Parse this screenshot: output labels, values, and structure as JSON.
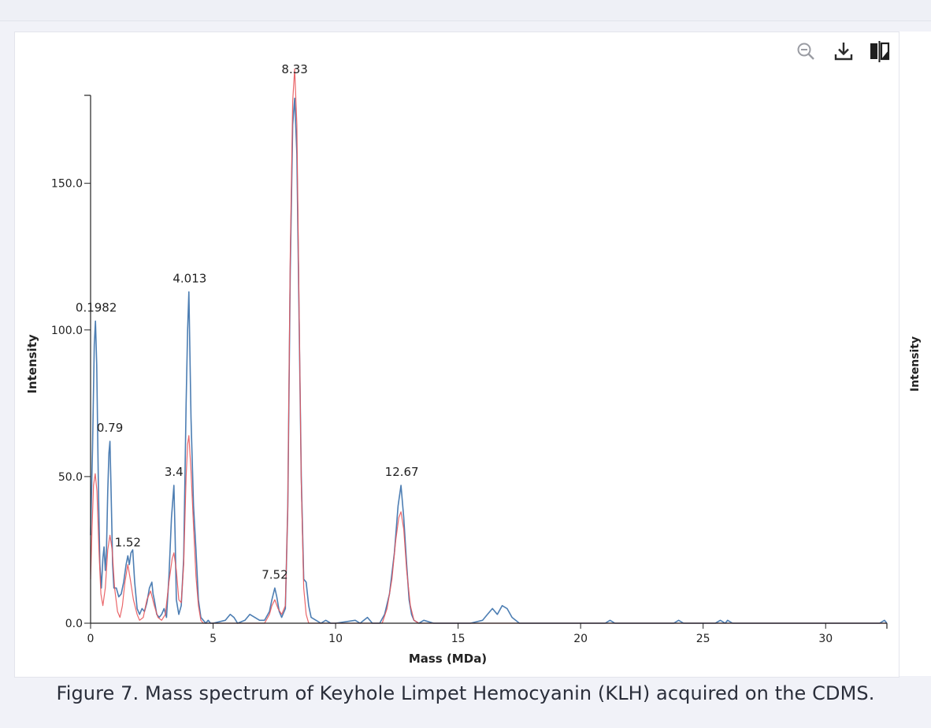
{
  "caption": "Figure 7. Mass spectrum of Keyhole Limpet Hemocyanin (KLH) acquired on the CDMS.",
  "side_axis_label": "Intensity",
  "toolbar": {
    "icons": [
      "zoom-out-icon",
      "download-icon",
      "compare-icon"
    ]
  },
  "colors": {
    "observed": "#4d7eb3",
    "fit": "#e8555a",
    "background": "#f1f2f8"
  },
  "chart_data": {
    "type": "line",
    "title": "",
    "xlabel": "Mass (MDa)",
    "ylabel": "Intensity",
    "xlim": [
      0,
      32.5
    ],
    "ylim": [
      0,
      180
    ],
    "x_ticks": [
      0,
      5,
      10,
      15,
      20,
      25,
      30
    ],
    "y_ticks": [
      0,
      50,
      100,
      150
    ],
    "y_tick_labels": [
      "0.0",
      "50.0",
      "100.0",
      "150.0"
    ],
    "grid": false,
    "legend": "none",
    "series": [
      {
        "color": "#4d7eb3",
        "points": [
          [
            0,
            30
          ],
          [
            0.08,
            60
          ],
          [
            0.15,
            95
          ],
          [
            0.2,
            103
          ],
          [
            0.25,
            88
          ],
          [
            0.32,
            45
          ],
          [
            0.38,
            20
          ],
          [
            0.44,
            12
          ],
          [
            0.5,
            22
          ],
          [
            0.55,
            26
          ],
          [
            0.6,
            18
          ],
          [
            0.65,
            25
          ],
          [
            0.7,
            45
          ],
          [
            0.75,
            58
          ],
          [
            0.79,
            62
          ],
          [
            0.83,
            48
          ],
          [
            0.9,
            20
          ],
          [
            0.95,
            12
          ],
          [
            1.05,
            12
          ],
          [
            1.15,
            9
          ],
          [
            1.25,
            10
          ],
          [
            1.35,
            14
          ],
          [
            1.45,
            20
          ],
          [
            1.52,
            23
          ],
          [
            1.58,
            20
          ],
          [
            1.65,
            24
          ],
          [
            1.72,
            25
          ],
          [
            1.8,
            14
          ],
          [
            1.9,
            5
          ],
          [
            2.0,
            3
          ],
          [
            2.1,
            5
          ],
          [
            2.2,
            4
          ],
          [
            2.3,
            7
          ],
          [
            2.4,
            12
          ],
          [
            2.5,
            14
          ],
          [
            2.55,
            10
          ],
          [
            2.6,
            8
          ],
          [
            2.7,
            3
          ],
          [
            2.8,
            2
          ],
          [
            2.9,
            3
          ],
          [
            3.0,
            5
          ],
          [
            3.1,
            2
          ],
          [
            3.2,
            16
          ],
          [
            3.3,
            36
          ],
          [
            3.4,
            47
          ],
          [
            3.45,
            30
          ],
          [
            3.5,
            8
          ],
          [
            3.6,
            3
          ],
          [
            3.7,
            6
          ],
          [
            3.8,
            22
          ],
          [
            3.9,
            75
          ],
          [
            3.96,
            100
          ],
          [
            4.013,
            113
          ],
          [
            4.1,
            70
          ],
          [
            4.2,
            40
          ],
          [
            4.3,
            25
          ],
          [
            4.4,
            8
          ],
          [
            4.5,
            2
          ],
          [
            4.6,
            1
          ],
          [
            4.7,
            0
          ],
          [
            4.8,
            1
          ],
          [
            4.9,
            0
          ],
          [
            5.0,
            0
          ],
          [
            5.5,
            1
          ],
          [
            5.7,
            3
          ],
          [
            5.85,
            2
          ],
          [
            6.0,
            0
          ],
          [
            6.3,
            1
          ],
          [
            6.5,
            3
          ],
          [
            6.7,
            2
          ],
          [
            6.9,
            1
          ],
          [
            7.1,
            1
          ],
          [
            7.3,
            4
          ],
          [
            7.4,
            8
          ],
          [
            7.52,
            12
          ],
          [
            7.6,
            9
          ],
          [
            7.7,
            4
          ],
          [
            7.8,
            2
          ],
          [
            7.95,
            5
          ],
          [
            8.05,
            40
          ],
          [
            8.15,
            120
          ],
          [
            8.25,
            170
          ],
          [
            8.33,
            179
          ],
          [
            8.42,
            160
          ],
          [
            8.5,
            110
          ],
          [
            8.6,
            50
          ],
          [
            8.7,
            15
          ],
          [
            8.8,
            14
          ],
          [
            8.9,
            6
          ],
          [
            9.0,
            2
          ],
          [
            9.2,
            1
          ],
          [
            9.4,
            0
          ],
          [
            9.6,
            1
          ],
          [
            9.8,
            0
          ],
          [
            10.0,
            0
          ],
          [
            10.8,
            1
          ],
          [
            11.0,
            0
          ],
          [
            11.3,
            2
          ],
          [
            11.5,
            0
          ],
          [
            11.8,
            0
          ],
          [
            12.0,
            3
          ],
          [
            12.2,
            10
          ],
          [
            12.4,
            24
          ],
          [
            12.55,
            40
          ],
          [
            12.67,
            47
          ],
          [
            12.78,
            36
          ],
          [
            12.9,
            20
          ],
          [
            13.0,
            8
          ],
          [
            13.1,
            3
          ],
          [
            13.2,
            1
          ],
          [
            13.4,
            0
          ],
          [
            13.6,
            1
          ],
          [
            14.0,
            0
          ],
          [
            15.5,
            0
          ],
          [
            16.0,
            1
          ],
          [
            16.2,
            3
          ],
          [
            16.4,
            5
          ],
          [
            16.6,
            3
          ],
          [
            16.8,
            6
          ],
          [
            17.0,
            5
          ],
          [
            17.2,
            2
          ],
          [
            17.5,
            0
          ],
          [
            18.0,
            0
          ],
          [
            21.0,
            0
          ],
          [
            21.2,
            1
          ],
          [
            21.4,
            0
          ],
          [
            23.8,
            0
          ],
          [
            24.0,
            1
          ],
          [
            24.2,
            0
          ],
          [
            25.5,
            0
          ],
          [
            25.7,
            1
          ],
          [
            25.9,
            0
          ],
          [
            26.0,
            1
          ],
          [
            26.2,
            0
          ],
          [
            30.0,
            0
          ],
          [
            32.2,
            0
          ],
          [
            32.4,
            1
          ],
          [
            32.5,
            0
          ]
        ]
      },
      {
        "color": "#e8555a",
        "points": [
          [
            0,
            15
          ],
          [
            0.05,
            30
          ],
          [
            0.12,
            47
          ],
          [
            0.19,
            51
          ],
          [
            0.26,
            45
          ],
          [
            0.34,
            25
          ],
          [
            0.42,
            10
          ],
          [
            0.5,
            6
          ],
          [
            0.6,
            12
          ],
          [
            0.7,
            25
          ],
          [
            0.79,
            30
          ],
          [
            0.88,
            25
          ],
          [
            0.98,
            12
          ],
          [
            1.1,
            4
          ],
          [
            1.2,
            2
          ],
          [
            1.3,
            6
          ],
          [
            1.4,
            14
          ],
          [
            1.52,
            20
          ],
          [
            1.62,
            15
          ],
          [
            1.75,
            8
          ],
          [
            1.9,
            3
          ],
          [
            2.0,
            1
          ],
          [
            2.15,
            2
          ],
          [
            2.3,
            8
          ],
          [
            2.45,
            11
          ],
          [
            2.6,
            6
          ],
          [
            2.75,
            2
          ],
          [
            2.9,
            1
          ],
          [
            3.05,
            3
          ],
          [
            3.2,
            14
          ],
          [
            3.33,
            22
          ],
          [
            3.4,
            24
          ],
          [
            3.5,
            18
          ],
          [
            3.6,
            8
          ],
          [
            3.7,
            7
          ],
          [
            3.8,
            20
          ],
          [
            3.9,
            50
          ],
          [
            3.96,
            61
          ],
          [
            4.013,
            64
          ],
          [
            4.1,
            52
          ],
          [
            4.2,
            33
          ],
          [
            4.3,
            16
          ],
          [
            4.4,
            6
          ],
          [
            4.5,
            1
          ],
          [
            4.6,
            0
          ],
          [
            7.1,
            0
          ],
          [
            7.3,
            3
          ],
          [
            7.4,
            6
          ],
          [
            7.52,
            8
          ],
          [
            7.65,
            5
          ],
          [
            7.8,
            3
          ],
          [
            7.95,
            6
          ],
          [
            8.05,
            40
          ],
          [
            8.15,
            125
          ],
          [
            8.25,
            178
          ],
          [
            8.33,
            189
          ],
          [
            8.42,
            170
          ],
          [
            8.5,
            115
          ],
          [
            8.6,
            48
          ],
          [
            8.7,
            12
          ],
          [
            8.8,
            3
          ],
          [
            8.9,
            0
          ],
          [
            11.9,
            0
          ],
          [
            12.1,
            5
          ],
          [
            12.3,
            15
          ],
          [
            12.45,
            28
          ],
          [
            12.58,
            36
          ],
          [
            12.67,
            38
          ],
          [
            12.78,
            32
          ],
          [
            12.9,
            18
          ],
          [
            13.05,
            6
          ],
          [
            13.2,
            1
          ],
          [
            13.4,
            0
          ],
          [
            32.5,
            0
          ]
        ]
      }
    ],
    "annotations": [
      {
        "text": "0.1982",
        "x": 0.1982,
        "y": 103
      },
      {
        "text": "0.79",
        "x": 0.79,
        "y": 62
      },
      {
        "text": "1.52",
        "x": 1.52,
        "y": 23
      },
      {
        "text": "3.4",
        "x": 3.4,
        "y": 47
      },
      {
        "text": "4.013",
        "x": 4.013,
        "y": 113
      },
      {
        "text": "7.52",
        "x": 7.52,
        "y": 12
      },
      {
        "text": "8.33",
        "x": 8.33,
        "y": 189
      },
      {
        "text": "12.67",
        "x": 12.67,
        "y": 47
      }
    ]
  }
}
